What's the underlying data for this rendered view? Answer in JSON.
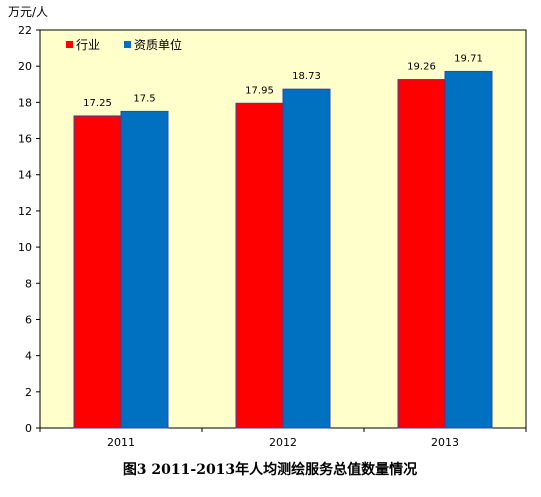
{
  "chart_data": {
    "type": "bar",
    "title": "图3  2011-2013年人均测绘服务总值数量情况",
    "ylabel": "万元/人",
    "categories": [
      "2011",
      "2012",
      "2013"
    ],
    "series": [
      {
        "name": "行业",
        "values": [
          17.25,
          17.95,
          19.26
        ],
        "color": "#ff0000"
      },
      {
        "name": "资质单位",
        "values": [
          17.5,
          18.73,
          19.71
        ],
        "color": "#0070c0"
      }
    ],
    "ylim": [
      0,
      22
    ],
    "yticks": [
      0,
      2,
      4,
      6,
      8,
      10,
      12,
      14,
      16,
      18,
      20,
      22
    ],
    "legend_position": "top-left",
    "grid": false,
    "plot_background": "#ffffcc"
  }
}
